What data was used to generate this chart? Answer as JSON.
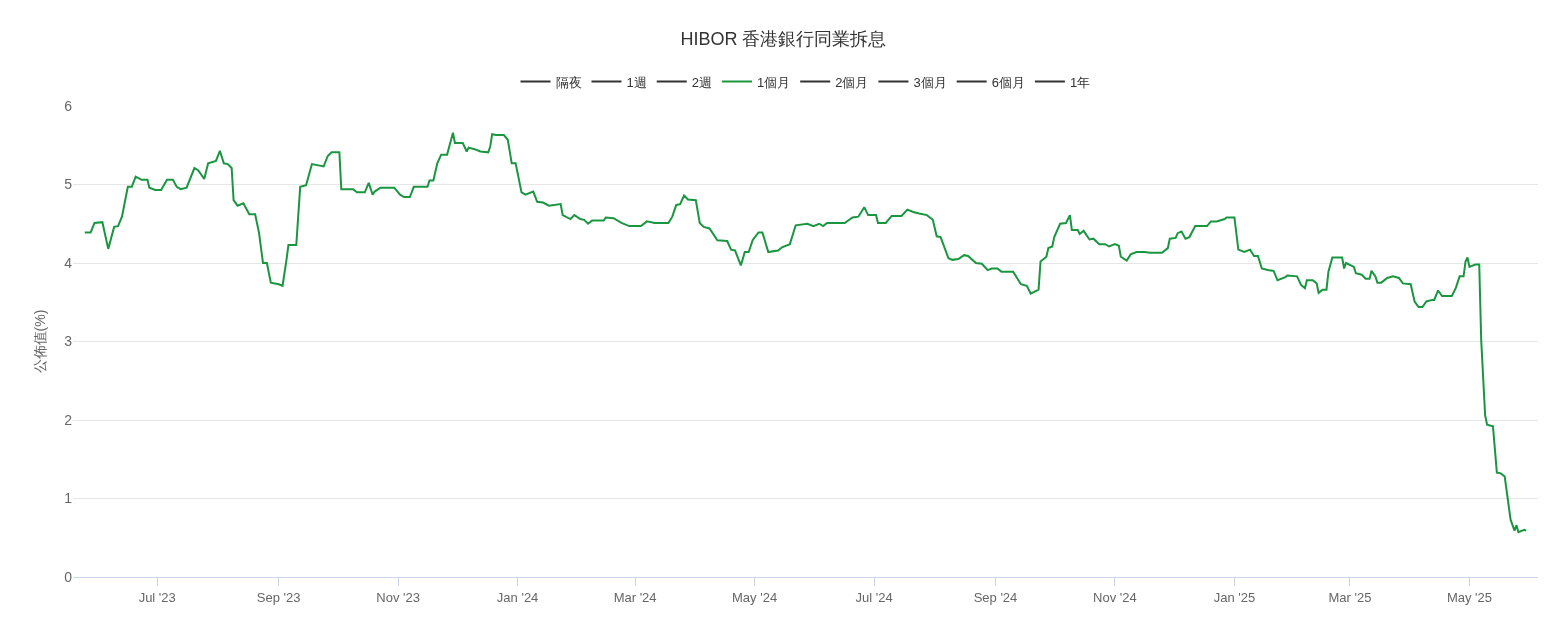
{
  "chart_data": {
    "type": "line",
    "title": "HIBOR 香港銀行同業拆息",
    "ylabel": "公佈值(%)",
    "xlim": [
      "2023-05-19",
      "2025-06-05"
    ],
    "xticks": [
      {
        "value": "2023-07-01",
        "label": "Jul '23"
      },
      {
        "value": "2023-09-01",
        "label": "Sep '23"
      },
      {
        "value": "2023-11-01",
        "label": "Nov '23"
      },
      {
        "value": "2024-01-01",
        "label": "Jan '24"
      },
      {
        "value": "2024-03-01",
        "label": "Mar '24"
      },
      {
        "value": "2024-05-01",
        "label": "May '24"
      },
      {
        "value": "2024-07-01",
        "label": "Jul '24"
      },
      {
        "value": "2024-09-01",
        "label": "Sep '24"
      },
      {
        "value": "2024-11-01",
        "label": "Nov '24"
      },
      {
        "value": "2025-01-01",
        "label": "Jan '25"
      },
      {
        "value": "2025-03-01",
        "label": "Mar '25"
      },
      {
        "value": "2025-05-01",
        "label": "May '25"
      }
    ],
    "ylim": [
      0,
      6
    ],
    "yticks": [
      0,
      1,
      2,
      3,
      4,
      5,
      6
    ],
    "grid": "y",
    "legend": "top",
    "series": [
      {
        "name": "隔夜",
        "color": "#333333"
      },
      {
        "name": "1週",
        "color": "#333333"
      },
      {
        "name": "2週",
        "color": "#333333"
      },
      {
        "name": "1個月",
        "color": "#1a9641",
        "x": [
          "2023-05-25",
          "2023-05-28",
          "2023-05-30",
          "2023-06-03",
          "2023-06-06",
          "2023-06-09",
          "2023-06-11",
          "2023-06-13",
          "2023-06-16",
          "2023-06-18",
          "2023-06-20",
          "2023-06-23",
          "2023-06-26",
          "2023-06-27",
          "2023-06-30",
          "2023-07-03",
          "2023-07-06",
          "2023-07-09",
          "2023-07-11",
          "2023-07-13",
          "2023-07-16",
          "2023-07-20",
          "2023-07-22",
          "2023-07-25",
          "2023-07-27",
          "2023-07-31",
          "2023-08-02",
          "2023-08-04",
          "2023-08-06",
          "2023-08-08",
          "2023-08-09",
          "2023-08-11",
          "2023-08-14",
          "2023-08-17",
          "2023-08-20",
          "2023-08-22",
          "2023-08-24",
          "2023-08-26",
          "2023-08-28",
          "2023-09-01",
          "2023-09-03",
          "2023-09-05",
          "2023-09-06",
          "2023-09-10",
          "2023-09-12",
          "2023-09-15",
          "2023-09-18",
          "2023-09-24",
          "2023-09-26",
          "2023-09-28",
          "2023-10-02",
          "2023-10-03",
          "2023-10-09",
          "2023-10-11",
          "2023-10-15",
          "2023-10-17",
          "2023-10-19",
          "2023-10-20",
          "2023-10-23",
          "2023-10-30",
          "2023-11-02",
          "2023-11-04",
          "2023-11-07",
          "2023-11-09",
          "2023-11-16",
          "2023-11-17",
          "2023-11-19",
          "2023-11-21",
          "2023-11-23",
          "2023-11-26",
          "2023-11-29",
          "2023-11-30",
          "2023-12-04",
          "2023-12-06",
          "2023-12-07",
          "2023-12-10",
          "2023-12-13",
          "2023-12-17",
          "2023-12-18",
          "2023-12-19",
          "2023-12-21",
          "2023-12-25",
          "2023-12-27",
          "2023-12-29",
          "2023-12-31",
          "2024-01-03",
          "2024-01-05",
          "2024-01-09",
          "2024-01-11",
          "2024-01-14",
          "2024-01-17",
          "2024-01-23",
          "2024-01-24",
          "2024-01-28",
          "2024-01-30",
          "2024-02-02",
          "2024-02-04",
          "2024-02-06",
          "2024-02-08",
          "2024-02-14",
          "2024-02-15",
          "2024-02-19",
          "2024-02-23",
          "2024-02-27",
          "2024-03-04",
          "2024-03-07",
          "2024-03-11",
          "2024-03-18",
          "2024-03-20",
          "2024-03-22",
          "2024-03-24",
          "2024-03-26",
          "2024-03-28",
          "2024-04-01",
          "2024-04-03",
          "2024-04-05",
          "2024-04-08",
          "2024-04-12",
          "2024-04-17",
          "2024-04-19",
          "2024-04-21",
          "2024-04-24",
          "2024-04-26",
          "2024-04-28",
          "2024-04-30",
          "2024-05-03",
          "2024-05-05",
          "2024-05-08",
          "2024-05-13",
          "2024-05-15",
          "2024-05-19",
          "2024-05-22",
          "2024-05-28",
          "2024-05-31",
          "2024-06-03",
          "2024-06-05",
          "2024-06-07",
          "2024-06-16",
          "2024-06-20",
          "2024-06-23",
          "2024-06-26",
          "2024-06-28",
          "2024-07-02",
          "2024-07-03",
          "2024-07-07",
          "2024-07-10",
          "2024-07-15",
          "2024-07-18",
          "2024-07-21",
          "2024-07-24",
          "2024-07-28",
          "2024-07-31",
          "2024-08-02",
          "2024-08-04",
          "2024-08-08",
          "2024-08-10",
          "2024-08-13",
          "2024-08-16",
          "2024-08-18",
          "2024-08-22",
          "2024-08-25",
          "2024-08-28",
          "2024-08-30",
          "2024-09-02",
          "2024-09-04",
          "2024-09-10",
          "2024-09-14",
          "2024-09-17",
          "2024-09-19",
          "2024-09-23",
          "2024-09-24",
          "2024-09-27",
          "2024-09-28",
          "2024-09-30",
          "2024-10-01",
          "2024-10-04",
          "2024-10-07",
          "2024-10-09",
          "2024-10-10",
          "2024-10-13",
          "2024-10-14",
          "2024-10-16",
          "2024-10-19",
          "2024-10-21",
          "2024-10-24",
          "2024-10-27",
          "2024-10-29",
          "2024-11-01",
          "2024-11-03",
          "2024-11-04",
          "2024-11-07",
          "2024-11-09",
          "2024-11-12",
          "2024-11-16",
          "2024-11-19",
          "2024-11-25",
          "2024-11-28",
          "2024-11-29",
          "2024-12-02",
          "2024-12-03",
          "2024-12-05",
          "2024-12-07",
          "2024-12-09",
          "2024-12-12",
          "2024-12-18",
          "2024-12-20",
          "2024-12-23",
          "2024-12-27",
          "2024-12-28",
          "2025-01-01",
          "2025-01-03",
          "2025-01-06",
          "2025-01-09",
          "2025-01-11",
          "2025-01-13",
          "2025-01-15",
          "2025-01-18",
          "2025-01-21",
          "2025-01-23",
          "2025-01-27",
          "2025-01-28",
          "2025-02-02",
          "2025-02-04",
          "2025-02-06",
          "2025-02-07",
          "2025-02-10",
          "2025-02-12",
          "2025-02-13",
          "2025-02-15",
          "2025-02-17",
          "2025-02-18",
          "2025-02-20",
          "2025-02-25",
          "2025-02-26",
          "2025-02-27",
          "2025-03-03",
          "2025-03-04",
          "2025-03-07",
          "2025-03-09",
          "2025-03-11",
          "2025-03-12",
          "2025-03-14",
          "2025-03-15",
          "2025-03-17",
          "2025-03-20",
          "2025-03-23",
          "2025-03-26",
          "2025-03-28",
          "2025-04-01",
          "2025-04-03",
          "2025-04-05",
          "2025-04-07",
          "2025-04-09",
          "2025-04-12",
          "2025-04-13",
          "2025-04-15",
          "2025-04-17",
          "2025-04-22",
          "2025-04-24",
          "2025-04-26",
          "2025-04-28",
          "2025-04-29",
          "2025-04-30",
          "2025-05-01",
          "2025-05-04",
          "2025-05-06",
          "2025-05-07",
          "2025-05-09",
          "2025-05-10",
          "2025-05-13",
          "2025-05-15",
          "2025-05-17",
          "2025-05-19",
          "2025-05-22",
          "2025-05-24",
          "2025-05-25",
          "2025-05-26",
          "2025-05-29",
          "2025-05-30"
        ],
        "values": [
          4.39,
          4.39,
          4.51,
          4.52,
          4.18,
          4.46,
          4.47,
          4.59,
          4.97,
          4.97,
          5.1,
          5.06,
          5.06,
          4.96,
          4.93,
          4.93,
          5.06,
          5.06,
          4.97,
          4.94,
          4.96,
          5.21,
          5.18,
          5.07,
          5.27,
          5.3,
          5.43,
          5.27,
          5.26,
          5.21,
          4.8,
          4.73,
          4.76,
          4.62,
          4.62,
          4.38,
          4.0,
          4.0,
          3.75,
          3.73,
          3.71,
          4.04,
          4.23,
          4.23,
          4.97,
          4.99,
          5.26,
          5.23,
          5.36,
          5.41,
          5.41,
          4.94,
          4.94,
          4.9,
          4.9,
          5.02,
          4.87,
          4.91,
          4.96,
          4.96,
          4.87,
          4.84,
          4.84,
          4.97,
          4.97,
          5.05,
          5.05,
          5.27,
          5.38,
          5.38,
          5.66,
          5.53,
          5.53,
          5.42,
          5.47,
          5.45,
          5.42,
          5.41,
          5.48,
          5.64,
          5.63,
          5.63,
          5.57,
          5.27,
          5.27,
          4.9,
          4.87,
          4.91,
          4.78,
          4.77,
          4.73,
          4.75,
          4.61,
          4.56,
          4.61,
          4.56,
          4.55,
          4.5,
          4.54,
          4.54,
          4.58,
          4.57,
          4.51,
          4.47,
          4.47,
          4.53,
          4.51,
          4.51,
          4.59,
          4.74,
          4.75,
          4.86,
          4.81,
          4.8,
          4.51,
          4.46,
          4.44,
          4.29,
          4.28,
          4.17,
          4.16,
          3.97,
          4.14,
          4.14,
          4.29,
          4.39,
          4.39,
          4.14,
          4.16,
          4.2,
          4.24,
          4.48,
          4.5,
          4.47,
          4.5,
          4.47,
          4.51,
          4.51,
          4.58,
          4.59,
          4.71,
          4.61,
          4.61,
          4.51,
          4.51,
          4.6,
          4.6,
          4.68,
          4.65,
          4.63,
          4.61,
          4.55,
          4.34,
          4.33,
          4.06,
          4.04,
          4.05,
          4.1,
          4.09,
          4.0,
          3.99,
          3.91,
          3.93,
          3.93,
          3.89,
          3.89,
          3.73,
          3.71,
          3.61,
          3.66,
          4.02,
          4.08,
          4.19,
          4.21,
          4.33,
          4.5,
          4.51,
          4.61,
          4.42,
          4.42,
          4.37,
          4.41,
          4.3,
          4.31,
          4.24,
          4.24,
          4.21,
          4.24,
          4.22,
          4.08,
          4.03,
          4.11,
          4.14,
          4.14,
          4.13,
          4.13,
          4.19,
          4.31,
          4.32,
          4.38,
          4.4,
          4.31,
          4.33,
          4.47,
          4.47,
          4.53,
          4.53,
          4.56,
          4.58,
          4.58,
          4.17,
          4.14,
          4.17,
          4.09,
          4.09,
          3.93,
          3.91,
          3.9,
          3.78,
          3.82,
          3.84,
          3.83,
          3.72,
          3.68,
          3.78,
          3.78,
          3.74,
          3.62,
          3.66,
          3.66,
          3.89,
          4.07,
          4.07,
          3.93,
          4.0,
          3.95,
          3.87,
          3.85,
          3.8,
          3.8,
          3.9,
          3.83,
          3.75,
          3.75,
          3.81,
          3.83,
          3.81,
          3.74,
          3.73,
          3.51,
          3.44,
          3.44,
          3.51,
          3.53,
          3.53,
          3.65,
          3.58,
          3.58,
          3.68,
          3.83,
          3.83,
          4.02,
          4.07,
          3.95,
          3.98,
          3.98,
          3.02,
          2.06,
          1.94,
          1.92,
          1.33,
          1.32,
          1.28,
          0.73,
          0.59,
          0.66,
          0.57,
          0.6,
          0.59
        ]
      },
      {
        "name": "2個月",
        "color": "#333333"
      },
      {
        "name": "3個月",
        "color": "#333333"
      },
      {
        "name": "6個月",
        "color": "#333333"
      },
      {
        "name": "1年",
        "color": "#333333"
      }
    ]
  }
}
